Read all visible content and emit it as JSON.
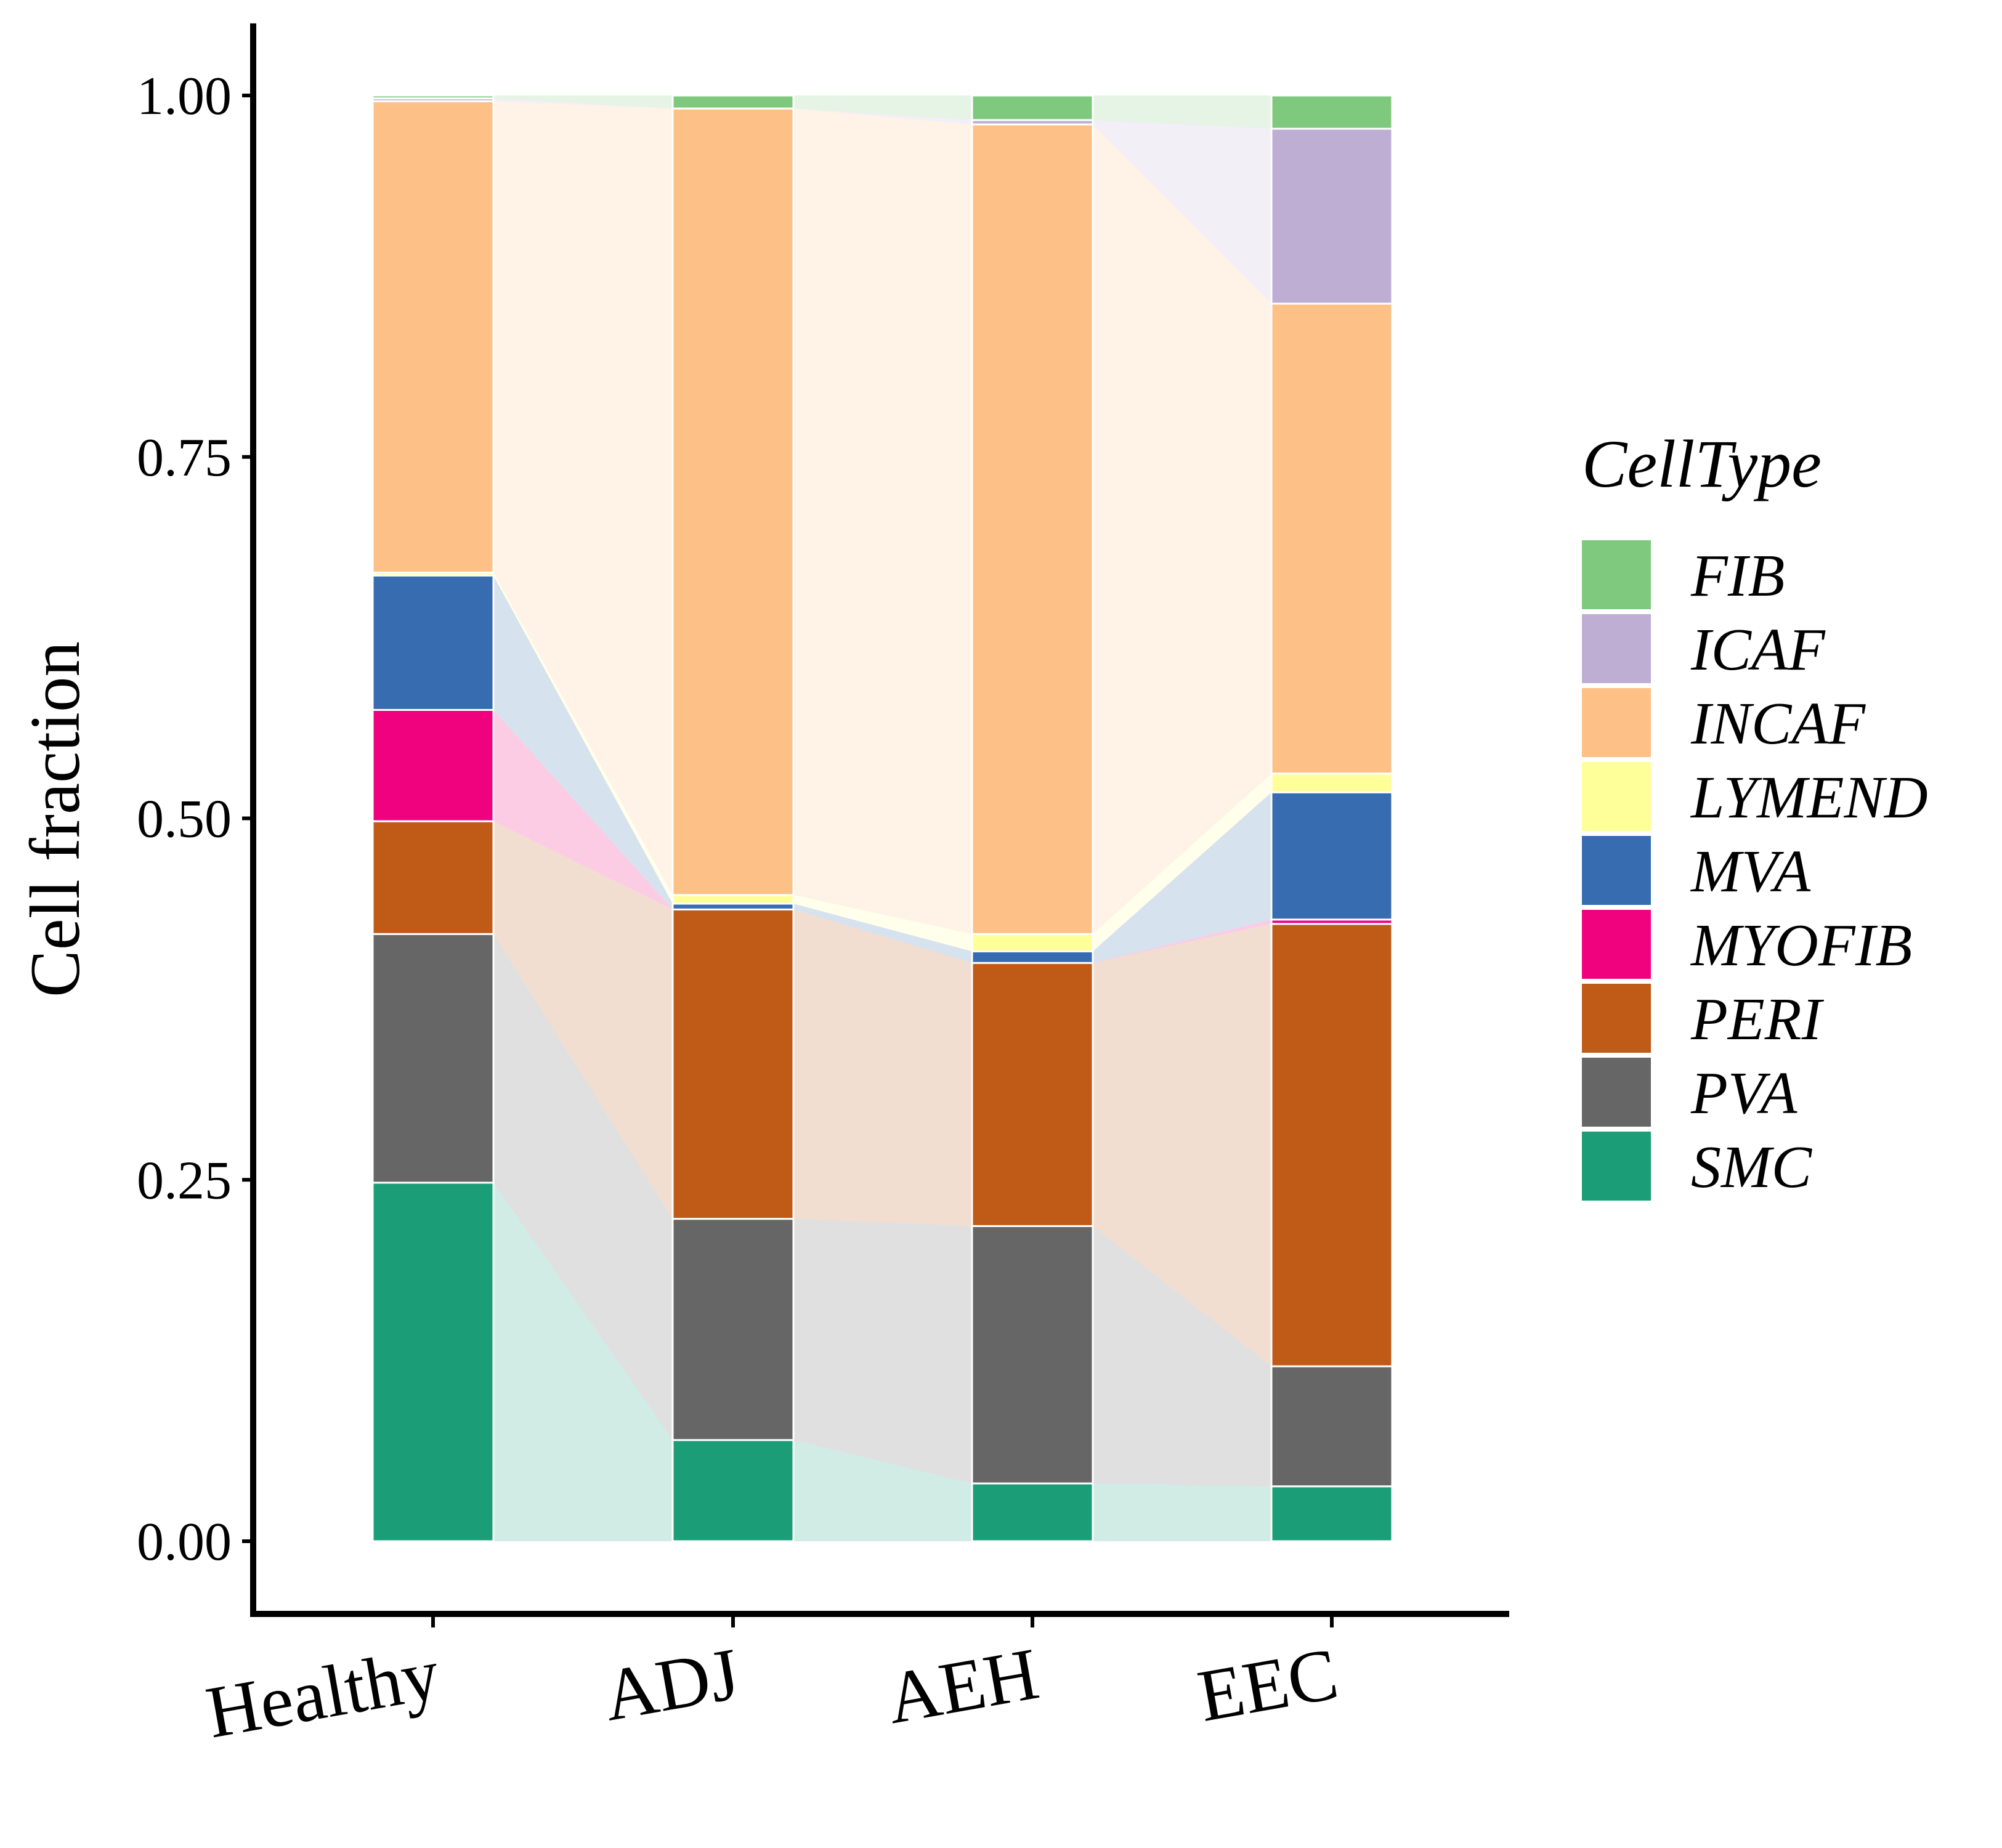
{
  "chart_data": {
    "type": "bar",
    "stacked": true,
    "with_alluvial_links": true,
    "categories": [
      "Healthy",
      "ADJ",
      "AEH",
      "EEC"
    ],
    "ylabel": "Cell fraction",
    "xlabel": "",
    "ylim": [
      0,
      1
    ],
    "yticks": [
      0.0,
      0.25,
      0.5,
      0.75,
      1.0
    ],
    "ytick_labels": [
      "0.00",
      "0.25",
      "0.50",
      "0.75",
      "1.00"
    ],
    "legend": {
      "title": "CellType",
      "position": "right"
    },
    "series": [
      {
        "name": "SMC",
        "color": "#1B9E77",
        "values": [
          0.248,
          0.07,
          0.04,
          0.038
        ]
      },
      {
        "name": "PVA",
        "color": "#666666",
        "values": [
          0.172,
          0.153,
          0.178,
          0.083
        ]
      },
      {
        "name": "PERI",
        "color": "#BF5B17",
        "values": [
          0.078,
          0.214,
          0.182,
          0.306
        ]
      },
      {
        "name": "MYOFIB",
        "color": "#F0027F",
        "values": [
          0.077,
          0.0,
          0.0,
          0.003
        ]
      },
      {
        "name": "MVA",
        "color": "#386CB0",
        "values": [
          0.093,
          0.004,
          0.008,
          0.088
        ]
      },
      {
        "name": "LYMEND",
        "color": "#FFFF99",
        "values": [
          0.002,
          0.006,
          0.012,
          0.013
        ]
      },
      {
        "name": "INCAF",
        "color": "#FDC086",
        "values": [
          0.326,
          0.544,
          0.56,
          0.325
        ]
      },
      {
        "name": "ICAF",
        "color": "#BEAED4",
        "values": [
          0.002,
          0.0,
          0.003,
          0.121
        ]
      },
      {
        "name": "FIB",
        "color": "#7FC97F",
        "values": [
          0.002,
          0.009,
          0.017,
          0.023
        ]
      }
    ],
    "legend_order": [
      "FIB",
      "ICAF",
      "INCAF",
      "LYMEND",
      "MVA",
      "MYOFIB",
      "PERI",
      "PVA",
      "SMC"
    ]
  }
}
